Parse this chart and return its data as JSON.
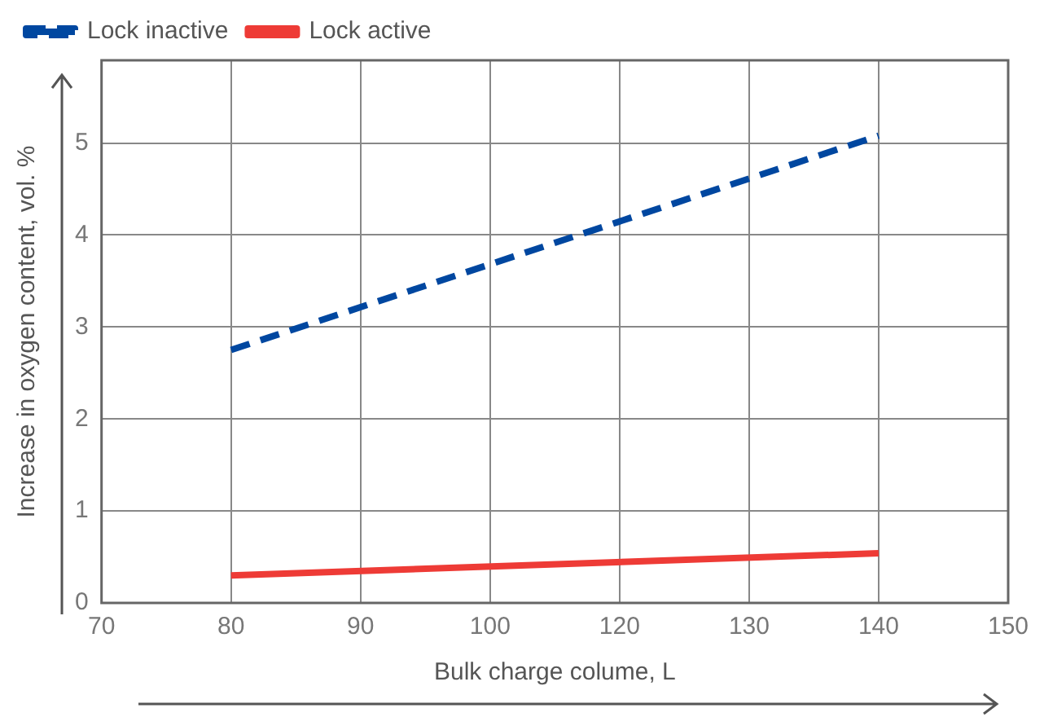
{
  "chart_data": {
    "type": "line",
    "xlabel": "Bulk charge colume, L",
    "ylabel": "Increase in oxygen content, vol. %",
    "categories": [
      "70",
      "80",
      "90",
      "100",
      "120",
      "130",
      "140",
      "150"
    ],
    "series": [
      {
        "name": "Lock inactive",
        "color": "#0047a0",
        "line_style": "dashed",
        "values": [
          null,
          2.75,
          null,
          null,
          null,
          null,
          5.08,
          null
        ]
      },
      {
        "name": "Lock active",
        "color": "#ee3b36",
        "line_style": "solid",
        "values": [
          null,
          0.3,
          null,
          null,
          null,
          null,
          0.54,
          null
        ]
      }
    ],
    "ylim": [
      0,
      5.9
    ],
    "yticks": [
      0,
      1,
      2,
      3,
      4,
      5
    ],
    "grid": true,
    "legend": "top left",
    "marker": "none"
  }
}
